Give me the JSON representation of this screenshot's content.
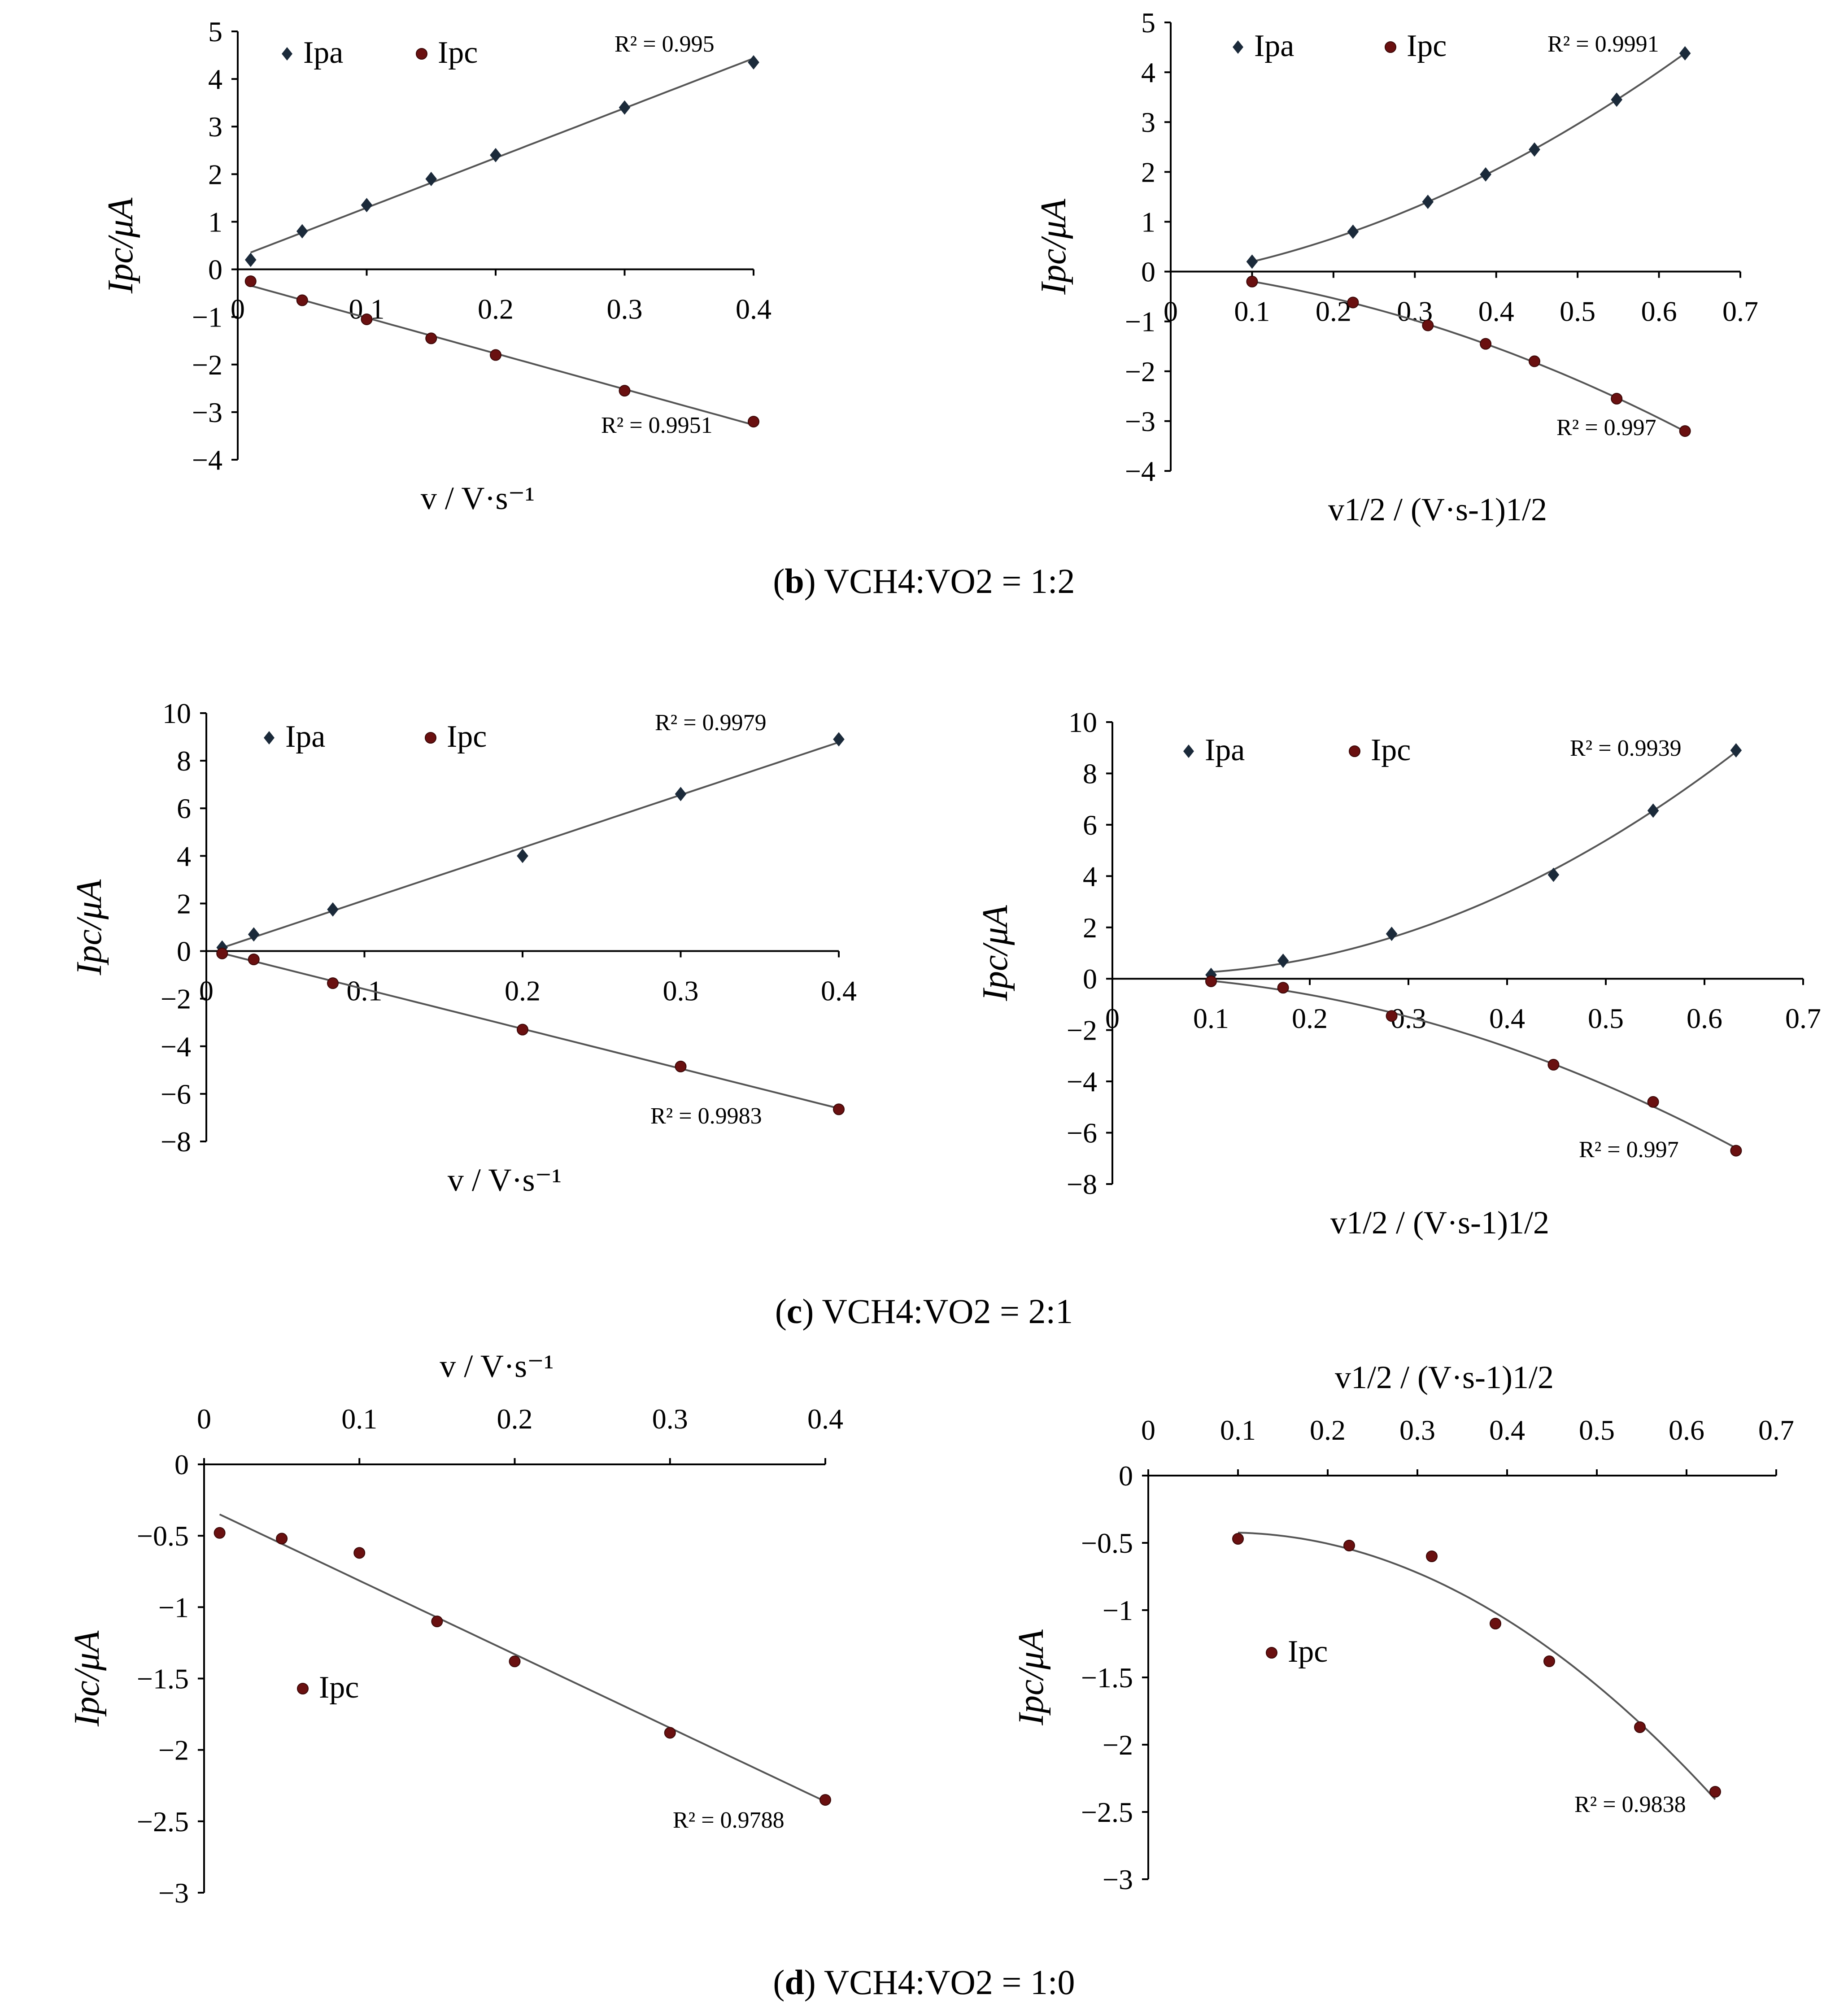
{
  "captions": [
    {
      "letter": "b",
      "text": "VCH4:VO2 = 1:2"
    },
    {
      "letter": "c",
      "text": "VCH4:VO2 = 2:1"
    },
    {
      "letter": "d",
      "text": "VCH4:VO2 = 1:0"
    }
  ],
  "chart_data": [
    {
      "id": "b-left",
      "type": "scatter",
      "xlabel": "v / V·s⁻¹",
      "ylabel": "Ipc/μA",
      "xlim": [
        0,
        0.4
      ],
      "ylim": [
        -4,
        5
      ],
      "xticks": [
        "0",
        "0.1",
        "0.2",
        "0.3",
        "0.4"
      ],
      "xtick_values": [
        0,
        0.1,
        0.2,
        0.3,
        0.4
      ],
      "yticks": [
        "5",
        "4",
        "3",
        "2",
        "1",
        "0",
        "−1",
        "−2",
        "−3",
        "−4"
      ],
      "ytick_values": [
        5,
        4,
        3,
        2,
        1,
        0,
        -1,
        -2,
        -3,
        -4
      ],
      "series": [
        {
          "name": "Ipa",
          "x": [
            0.01,
            0.05,
            0.1,
            0.15,
            0.2,
            0.3,
            0.4
          ],
          "y": [
            0.2,
            0.8,
            1.35,
            1.9,
            2.4,
            3.4,
            4.35
          ],
          "r2": "R² = 0.995",
          "fit": "linear"
        },
        {
          "name": "Ipc",
          "x": [
            0.01,
            0.05,
            0.1,
            0.15,
            0.2,
            0.3,
            0.4
          ],
          "y": [
            -0.25,
            -0.65,
            -1.05,
            -1.45,
            -1.8,
            -2.55,
            -3.2
          ],
          "r2": "R² = 0.9951",
          "fit": "linear"
        }
      ]
    },
    {
      "id": "b-right",
      "type": "scatter",
      "xlabel": "v1/2 / (V·s-1)1/2",
      "ylabel": "Ipc/μA",
      "xlim": [
        0,
        0.7
      ],
      "ylim": [
        -4,
        5
      ],
      "xticks": [
        "0",
        "0.1",
        "0.2",
        "0.3",
        "0.4",
        "0.5",
        "0.6",
        "0.7"
      ],
      "xtick_values": [
        0,
        0.1,
        0.2,
        0.3,
        0.4,
        0.5,
        0.6,
        0.7
      ],
      "yticks": [
        "5",
        "4",
        "3",
        "2",
        "1",
        "0",
        "−1",
        "−2",
        "−3",
        "−4"
      ],
      "ytick_values": [
        5,
        4,
        3,
        2,
        1,
        0,
        -1,
        -2,
        -3,
        -4
      ],
      "series": [
        {
          "name": "Ipa",
          "x": [
            0.1,
            0.224,
            0.316,
            0.387,
            0.447,
            0.548,
            0.632
          ],
          "y": [
            0.2,
            0.8,
            1.4,
            1.95,
            2.45,
            3.45,
            4.38
          ],
          "r2": "R² = 0.9991",
          "fit": "poly2"
        },
        {
          "name": "Ipc",
          "x": [
            0.1,
            0.224,
            0.316,
            0.387,
            0.447,
            0.548,
            0.632
          ],
          "y": [
            -0.2,
            -0.62,
            -1.08,
            -1.45,
            -1.8,
            -2.55,
            -3.2
          ],
          "r2": "R² = 0.997",
          "fit": "poly2"
        }
      ]
    },
    {
      "id": "c-left",
      "type": "scatter",
      "xlabel": "v / V·s⁻¹",
      "ylabel": "Ipc/μA",
      "xlim": [
        0,
        0.4
      ],
      "ylim": [
        -8,
        10
      ],
      "xticks": [
        "0",
        "0.1",
        "0.2",
        "0.3",
        "0.4"
      ],
      "xtick_values": [
        0,
        0.1,
        0.2,
        0.3,
        0.4
      ],
      "yticks": [
        "10",
        "8",
        "6",
        "4",
        "2",
        "0",
        "−2",
        "−4",
        "−6",
        "−8"
      ],
      "ytick_values": [
        10,
        8,
        6,
        4,
        2,
        0,
        -2,
        -4,
        -6,
        -8
      ],
      "series": [
        {
          "name": "Ipa",
          "x": [
            0.01,
            0.03,
            0.08,
            0.2,
            0.3,
            0.4
          ],
          "y": [
            0.15,
            0.7,
            1.75,
            4.0,
            6.6,
            8.9
          ],
          "r2": "R² = 0.9979",
          "fit": "linear"
        },
        {
          "name": "Ipc",
          "x": [
            0.01,
            0.03,
            0.08,
            0.2,
            0.3,
            0.4
          ],
          "y": [
            -0.1,
            -0.35,
            -1.35,
            -3.3,
            -4.85,
            -6.65
          ],
          "r2": "R² = 0.9983",
          "fit": "linear"
        }
      ]
    },
    {
      "id": "c-right",
      "type": "scatter",
      "xlabel": "v1/2 / (V·s-1)1/2",
      "ylabel": "Ipc/μA",
      "xlim": [
        0,
        0.7
      ],
      "ylim": [
        -8,
        10
      ],
      "xticks": [
        "0",
        "0.1",
        "0.2",
        "0.3",
        "0.4",
        "0.5",
        "0.6",
        "0.7"
      ],
      "xtick_values": [
        0,
        0.1,
        0.2,
        0.3,
        0.4,
        0.5,
        0.6,
        0.7
      ],
      "yticks": [
        "10",
        "8",
        "6",
        "4",
        "2",
        "0",
        "−2",
        "−4",
        "−6",
        "−8"
      ],
      "ytick_values": [
        10,
        8,
        6,
        4,
        2,
        0,
        -2,
        -4,
        -6,
        -8
      ],
      "series": [
        {
          "name": "Ipa",
          "x": [
            0.1,
            0.173,
            0.283,
            0.447,
            0.548,
            0.632
          ],
          "y": [
            0.15,
            0.7,
            1.75,
            4.05,
            6.55,
            8.9
          ],
          "r2": "R² = 0.9939",
          "fit": "poly2"
        },
        {
          "name": "Ipc",
          "x": [
            0.1,
            0.173,
            0.283,
            0.447,
            0.548,
            0.632
          ],
          "y": [
            -0.1,
            -0.35,
            -1.45,
            -3.35,
            -4.8,
            -6.7
          ],
          "r2": "R² = 0.997",
          "fit": "poly2"
        }
      ]
    },
    {
      "id": "d-left",
      "type": "scatter",
      "xlabel": "v / V·s⁻¹",
      "ylabel": "Ipc/μA",
      "xlim": [
        0,
        0.4
      ],
      "ylim": [
        -3,
        0
      ],
      "xticks": [
        "0",
        "0.1",
        "0.2",
        "0.3",
        "0.4"
      ],
      "xtick_values": [
        0,
        0.1,
        0.2,
        0.3,
        0.4
      ],
      "yticks": [
        "0",
        "−0.5",
        "−1",
        "−1.5",
        "−2",
        "−2.5",
        "−3"
      ],
      "ytick_values": [
        0,
        -0.5,
        -1,
        -1.5,
        -2,
        -2.5,
        -3
      ],
      "series": [
        {
          "name": "Ipc",
          "x": [
            0.01,
            0.05,
            0.1,
            0.15,
            0.2,
            0.3,
            0.4
          ],
          "y": [
            -0.48,
            -0.52,
            -0.62,
            -1.1,
            -1.38,
            -1.88,
            -2.35
          ],
          "r2": "R² = 0.9788",
          "fit": "linear"
        }
      ]
    },
    {
      "id": "d-right",
      "type": "scatter",
      "xlabel": "v1/2 / (V·s-1)1/2",
      "ylabel": "Ipc/μA",
      "xlim": [
        0,
        0.7
      ],
      "ylim": [
        -3,
        0
      ],
      "xticks": [
        "0",
        "0.1",
        "0.2",
        "0.3",
        "0.4",
        "0.5",
        "0.6",
        "0.7"
      ],
      "xtick_values": [
        0,
        0.1,
        0.2,
        0.3,
        0.4,
        0.5,
        0.6,
        0.7
      ],
      "yticks": [
        "0",
        "−0.5",
        "−1",
        "−1.5",
        "−2",
        "−2.5",
        "−3"
      ],
      "ytick_values": [
        0,
        -0.5,
        -1,
        -1.5,
        -2,
        -2.5,
        -3
      ],
      "series": [
        {
          "name": "Ipc",
          "x": [
            0.1,
            0.224,
            0.316,
            0.387,
            0.447,
            0.548,
            0.632
          ],
          "y": [
            -0.47,
            -0.52,
            -0.6,
            -1.1,
            -1.38,
            -1.87,
            -2.35
          ],
          "r2": "R² = 0.9838",
          "fit": "poly2"
        }
      ]
    }
  ]
}
